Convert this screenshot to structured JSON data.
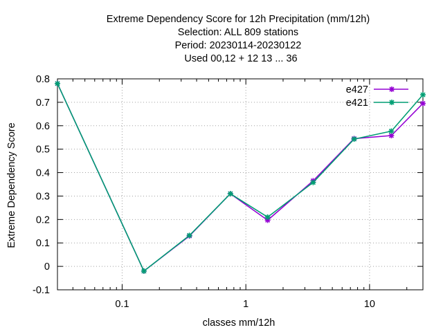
{
  "chart_data": {
    "type": "line",
    "title_lines": [
      "Extreme Dependency Score  for 12h Precipitation (mm/12h)",
      "Selection: ALL    809 stations",
      "Period: 20230114-20230122",
      "Used  00,12  + 12 13 ... 36"
    ],
    "xlabel": "classes mm/12h",
    "ylabel": "Extreme Dependency Score",
    "x_scale": "log",
    "xlim": [
      0.03,
      27
    ],
    "ylim": [
      -0.1,
      0.8
    ],
    "x_ticks": [
      {
        "value": 0.1,
        "label": "0.1"
      },
      {
        "value": 1,
        "label": "1"
      },
      {
        "value": 10,
        "label": "10"
      }
    ],
    "y_ticks": [
      {
        "value": -0.1,
        "label": "-0.1"
      },
      {
        "value": 0,
        "label": "0"
      },
      {
        "value": 0.1,
        "label": "0.1"
      },
      {
        "value": 0.2,
        "label": "0.2"
      },
      {
        "value": 0.3,
        "label": "0.3"
      },
      {
        "value": 0.4,
        "label": "0.4"
      },
      {
        "value": 0.5,
        "label": "0.5"
      },
      {
        "value": 0.6,
        "label": "0.6"
      },
      {
        "value": 0.7,
        "label": "0.7"
      },
      {
        "value": 0.8,
        "label": "0.8"
      }
    ],
    "grid": true,
    "legend_position": "top-right",
    "series": [
      {
        "name": "e427",
        "color": "#9400d3",
        "x": [
          0.03,
          0.15,
          0.35,
          0.75,
          1.5,
          3.5,
          7.5,
          15,
          27
        ],
        "y": [
          0.78,
          -0.02,
          0.13,
          0.31,
          0.197,
          0.365,
          0.545,
          0.558,
          0.695
        ]
      },
      {
        "name": "e421",
        "color": "#009e73",
        "x": [
          0.03,
          0.15,
          0.35,
          0.75,
          1.5,
          3.5,
          7.5,
          15,
          27
        ],
        "y": [
          0.78,
          -0.02,
          0.132,
          0.31,
          0.21,
          0.358,
          0.543,
          0.577,
          0.732
        ]
      }
    ]
  }
}
